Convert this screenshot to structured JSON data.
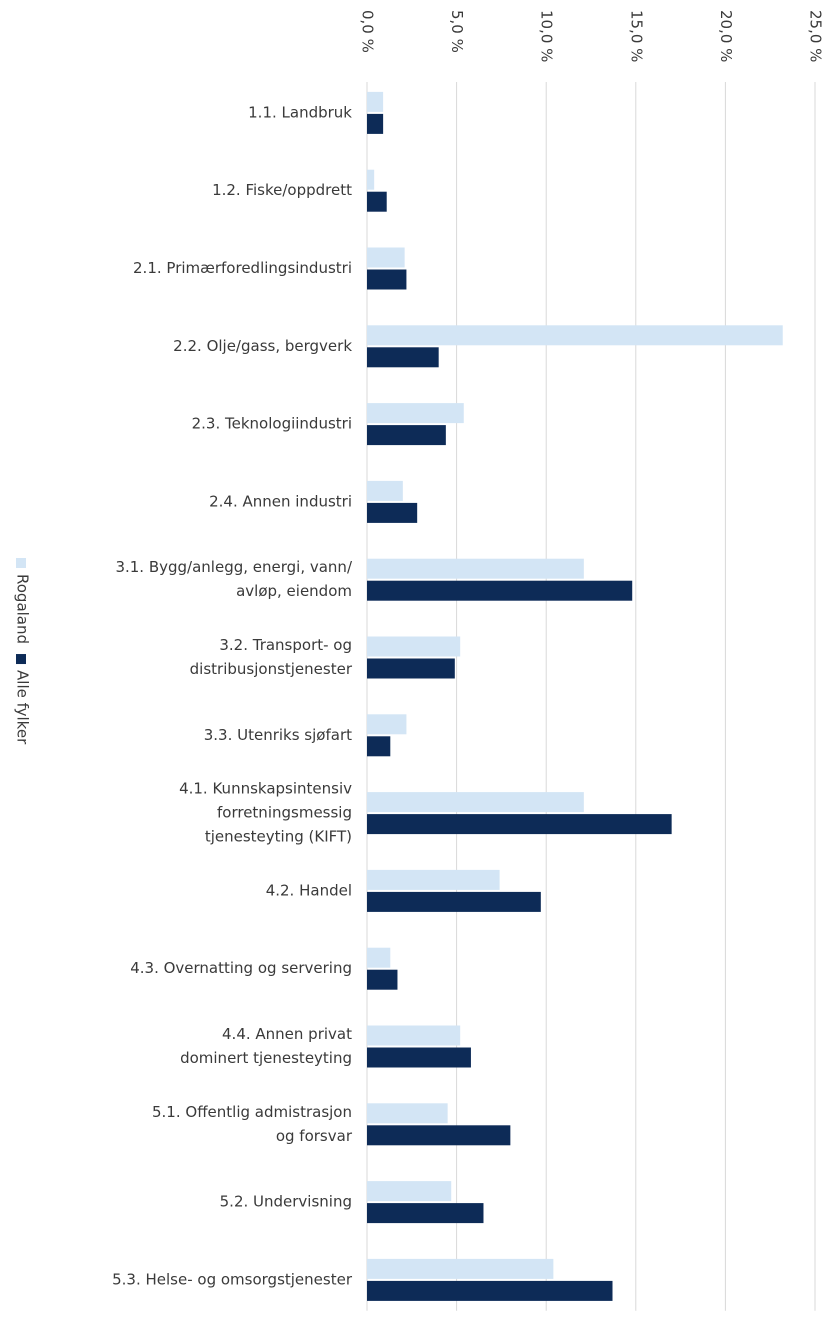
{
  "chart_data": {
    "type": "barh",
    "categories": [
      [
        "1.1. Landbruk"
      ],
      [
        "1.2. Fiske/oppdrett"
      ],
      [
        "2.1. Primærforedlingsindustri"
      ],
      [
        "2.2. Olje/gass, bergverk"
      ],
      [
        "2.3. Teknologiindustri"
      ],
      [
        "2.4. Annen industri"
      ],
      [
        "3.1. Bygg/anlegg, energi, vann/",
        "avløp, eiendom"
      ],
      [
        "3.2. Transport- og",
        "distribusjonstjenester"
      ],
      [
        "3.3. Utenriks sjøfart"
      ],
      [
        "4.1. Kunnskapsintensiv",
        "forretningsmessig",
        "tjenesteyting (KIFT)"
      ],
      [
        "4.2. Handel"
      ],
      [
        "4.3. Overnatting og servering"
      ],
      [
        "4.4. Annen privat",
        "dominert tjenesteyting"
      ],
      [
        "5.1. Offentlig admistrasjon",
        "og forsvar"
      ],
      [
        "5.2. Undervisning"
      ],
      [
        "5.3. Helse- og omsorgstjenester"
      ]
    ],
    "series": [
      {
        "name": "Rogaland",
        "color": "#d3e5f5",
        "values": [
          0.9,
          0.4,
          2.1,
          23.2,
          5.4,
          2.0,
          12.1,
          5.2,
          2.2,
          12.1,
          7.4,
          1.3,
          5.2,
          4.5,
          4.7,
          10.4
        ]
      },
      {
        "name": "Alle fylker",
        "color": "#0d2b57",
        "values": [
          0.9,
          1.1,
          2.2,
          4.0,
          4.4,
          2.8,
          14.8,
          4.9,
          1.3,
          17.0,
          9.7,
          1.7,
          5.8,
          8.0,
          6.5,
          13.7
        ]
      }
    ],
    "xlim": [
      0,
      25
    ],
    "xticks": [
      {
        "value": 0,
        "label": "0,0 %"
      },
      {
        "value": 5,
        "label": "5,0 %"
      },
      {
        "value": 10,
        "label": "10,0 %"
      },
      {
        "value": 15,
        "label": "15,0 %"
      },
      {
        "value": 20,
        "label": "20,0 %"
      },
      {
        "value": 25,
        "label": "25,0 %"
      }
    ],
    "grid": true,
    "legend": "left"
  }
}
